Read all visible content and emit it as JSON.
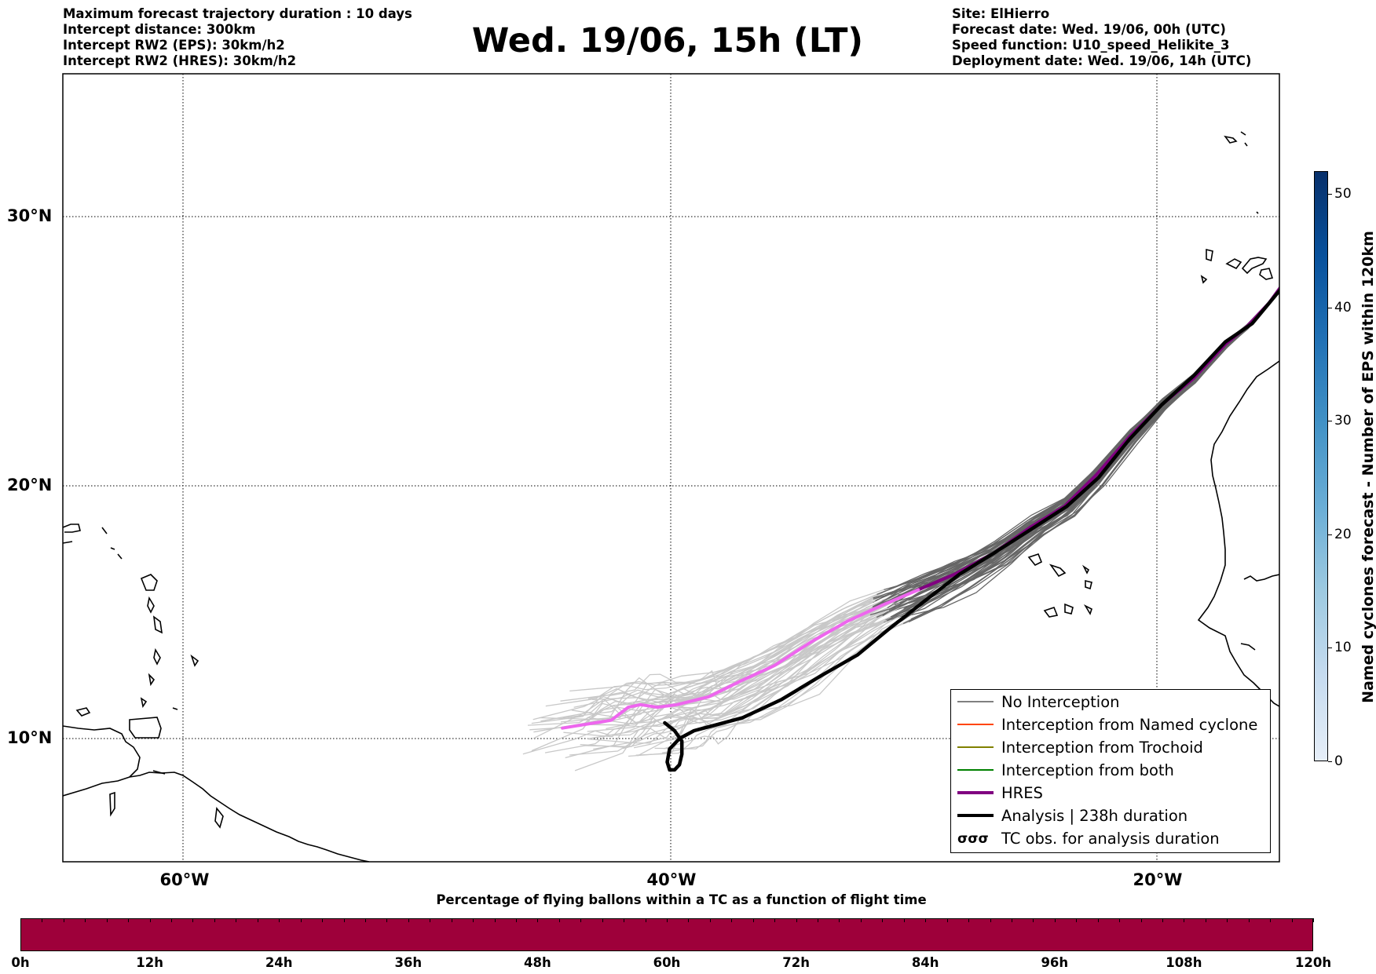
{
  "header": {
    "left_lines": [
      "Maximum forecast trajectory duration : 10 days",
      "Intercept distance: 300km",
      "Intercept RW2 (EPS):  30km/h2",
      "Intercept RW2 (HRES): 30km/h2"
    ],
    "title": "Wed. 19/06, 15h (LT)",
    "right_lines": [
      "Site: ElHierro",
      "Forecast date: Wed. 19/06, 00h (UTC)",
      "Speed function: U10_speed_Helikite_3",
      "Deployment date: Wed. 19/06, 14h (UTC)"
    ]
  },
  "map": {
    "lon_range": [
      -65,
      15
    ],
    "lat_range": [
      5,
      35
    ],
    "lat_labels": [
      "30°N",
      "20°N",
      "10°N"
    ],
    "lon_labels": [
      "60°W",
      "40°W",
      "20°W"
    ],
    "hres_track": [
      [
        -44.5,
        10.4
      ],
      [
        -42.5,
        10.7
      ],
      [
        -41.8,
        11.2
      ],
      [
        -41.3,
        11.3
      ],
      [
        -40.6,
        11.2
      ],
      [
        -39.8,
        11.3
      ],
      [
        -38.5,
        11.6
      ],
      [
        -37.2,
        12.2
      ],
      [
        -35.8,
        12.8
      ],
      [
        -34.3,
        13.7
      ],
      [
        -32.8,
        14.5
      ],
      [
        -31.4,
        15.1
      ],
      [
        -29.9,
        15.7
      ],
      [
        -28.4,
        16.3
      ],
      [
        -26.8,
        17.1
      ],
      [
        -25.3,
        18.1
      ],
      [
        -23.9,
        18.9
      ],
      [
        -22.6,
        20.1
      ],
      [
        -21.2,
        21.6
      ],
      [
        -19.9,
        22.8
      ],
      [
        -18.6,
        23.8
      ],
      [
        -17.3,
        25.1
      ],
      [
        -16.4,
        25.8
      ],
      [
        -15.5,
        26.7
      ],
      [
        -14.8,
        27.6
      ]
    ],
    "analysis_track": [
      [
        -40.3,
        10.6
      ],
      [
        -39.9,
        10.3
      ],
      [
        -39.6,
        9.9
      ],
      [
        -39.6,
        9.4
      ],
      [
        -39.7,
        9.0
      ],
      [
        -39.9,
        8.8
      ],
      [
        -40.1,
        8.8
      ],
      [
        -40.2,
        9.1
      ],
      [
        -40.1,
        9.6
      ],
      [
        -39.7,
        10.0
      ],
      [
        -39.1,
        10.3
      ],
      [
        -38.3,
        10.5
      ],
      [
        -37.1,
        10.8
      ],
      [
        -35.5,
        11.5
      ],
      [
        -33.9,
        12.4
      ],
      [
        -32.4,
        13.2
      ],
      [
        -31.1,
        14.2
      ],
      [
        -29.6,
        15.3
      ],
      [
        -28.2,
        16.3
      ],
      [
        -26.8,
        17.1
      ],
      [
        -25.3,
        18.0
      ],
      [
        -23.8,
        18.9
      ],
      [
        -22.5,
        20.0
      ],
      [
        -21.2,
        21.5
      ],
      [
        -19.9,
        22.8
      ],
      [
        -18.6,
        23.9
      ],
      [
        -17.3,
        25.2
      ],
      [
        -16.2,
        25.9
      ],
      [
        -15.4,
        26.8
      ],
      [
        -14.6,
        27.7
      ]
    ]
  },
  "legend": {
    "items": [
      {
        "label": "No Interception",
        "color": "#808080",
        "width": 1.5
      },
      {
        "label": "Interception from Named cyclone",
        "color": "#ff4500",
        "width": 1.5
      },
      {
        "label": "Interception from Trochoid",
        "color": "#808000",
        "width": 1.5
      },
      {
        "label": "Interception from both",
        "color": "#008000",
        "width": 1.5
      },
      {
        "label": "HRES",
        "color": "#800080",
        "width": 4
      },
      {
        "label": "Analysis | 238h duration",
        "color": "#000000",
        "width": 4
      }
    ],
    "tc_symbol": "σσσ",
    "tc_label": "TC obs. for analysis duration"
  },
  "colorbar": {
    "label": "Named cyclones forecast - Number of EPS within 120km",
    "ticks": [
      "0",
      "10",
      "20",
      "30",
      "40",
      "50"
    ],
    "max": 52
  },
  "flight_bar": {
    "caption": "Percentage of flying ballons within a TC as a function of flight time",
    "color": "#9e003a",
    "labels": [
      "0h",
      "12h",
      "24h",
      "36h",
      "48h",
      "60h",
      "72h",
      "84h",
      "96h",
      "108h",
      "120h"
    ]
  }
}
